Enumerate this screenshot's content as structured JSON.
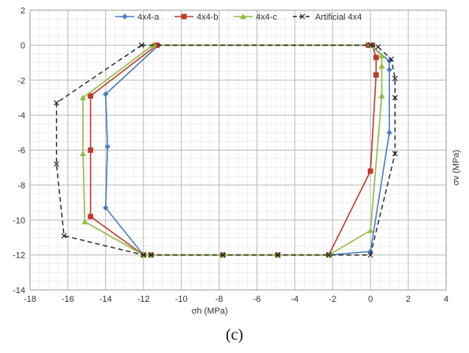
{
  "caption": "(c)",
  "chart_data": {
    "type": "line",
    "xlabel": "σh (MPa)",
    "ylabel": "σv (MPa)",
    "xlim": [
      -18,
      4
    ],
    "ylim": [
      -14,
      2
    ],
    "x_ticks": [
      "-18",
      "-16",
      "-14",
      "-12",
      "-10",
      "-8",
      "-6",
      "-4",
      "-2",
      "0",
      "2",
      "4"
    ],
    "y_ticks": [
      "2",
      "0",
      "-2",
      "-4",
      "-6",
      "-8",
      "-10",
      "-12",
      "-14"
    ],
    "grid": true,
    "legend_position": "top",
    "series": [
      {
        "name": "4x4-a",
        "color": "#4a7cc4",
        "marker": "diamond",
        "dash": "solid",
        "points": [
          [
            -11.2,
            0
          ],
          [
            -14,
            -2.8
          ],
          [
            -13.9,
            -5.8
          ],
          [
            -14,
            -9.3
          ],
          [
            -12,
            -12
          ],
          [
            -11.6,
            -12
          ],
          [
            -7.8,
            -12
          ],
          [
            -4.9,
            -12
          ],
          [
            -2.2,
            -12
          ],
          [
            0,
            -11.8
          ],
          [
            1,
            -5
          ],
          [
            1,
            -1.4
          ],
          [
            1,
            -0.9
          ],
          [
            0,
            0
          ],
          [
            -0.1,
            0
          ],
          [
            -11.2,
            0
          ]
        ]
      },
      {
        "name": "4x4-b",
        "color": "#c0392b",
        "marker": "square",
        "dash": "solid",
        "points": [
          [
            -11.3,
            0
          ],
          [
            -14.8,
            -2.9
          ],
          [
            -14.8,
            -6
          ],
          [
            -14.8,
            -9.8
          ],
          [
            -12,
            -12
          ],
          [
            -11.6,
            -12
          ],
          [
            -7.8,
            -12
          ],
          [
            -4.9,
            -12
          ],
          [
            -2.2,
            -12
          ],
          [
            0,
            -7.2
          ],
          [
            0.3,
            -1.7
          ],
          [
            0.3,
            -0.7
          ],
          [
            0.1,
            0
          ],
          [
            -0.1,
            0
          ],
          [
            -11.3,
            0
          ]
        ]
      },
      {
        "name": "4x4-c",
        "color": "#8fbc45",
        "marker": "triangle",
        "dash": "solid",
        "points": [
          [
            -11.5,
            0
          ],
          [
            -15.2,
            -3
          ],
          [
            -15.2,
            -6.2
          ],
          [
            -15.1,
            -10.1
          ],
          [
            -12,
            -12
          ],
          [
            -11.6,
            -12
          ],
          [
            -7.8,
            -12
          ],
          [
            -4.9,
            -12
          ],
          [
            -2.2,
            -12
          ],
          [
            0,
            -10.6
          ],
          [
            0.6,
            -2.9
          ],
          [
            0.6,
            -1.2
          ],
          [
            0.6,
            -0.6
          ],
          [
            0,
            0
          ],
          [
            -11.5,
            0
          ]
        ]
      },
      {
        "name": "Artificial 4x4",
        "color": "#222222",
        "marker": "x",
        "dash": "dashed",
        "points": [
          [
            -12.1,
            0
          ],
          [
            -16.6,
            -3.3
          ],
          [
            -16.6,
            -6.8
          ],
          [
            -16.2,
            -10.9
          ],
          [
            -12,
            -12
          ],
          [
            -11.6,
            -12
          ],
          [
            -7.8,
            -12
          ],
          [
            -4.9,
            -12
          ],
          [
            -2.2,
            -12
          ],
          [
            0,
            -12
          ],
          [
            1.3,
            -6.2
          ],
          [
            1.3,
            -3
          ],
          [
            1.3,
            -1.9
          ],
          [
            1.1,
            -0.8
          ],
          [
            0.4,
            -0.1
          ],
          [
            0,
            0
          ],
          [
            -12.1,
            0
          ]
        ]
      }
    ]
  }
}
